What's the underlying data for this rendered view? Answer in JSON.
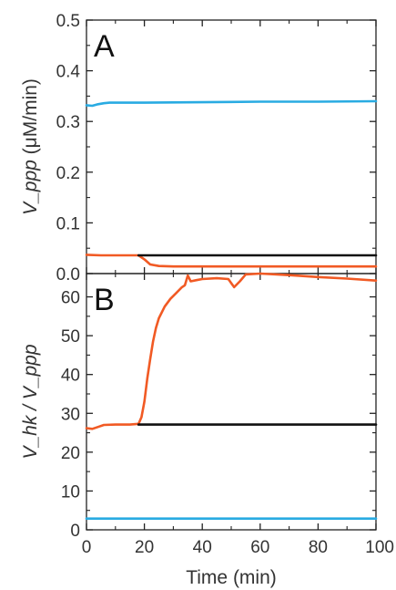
{
  "chart_data": [
    {
      "type": "line",
      "panel_label": "A",
      "title": "",
      "xlabel": "",
      "ylabel": "V_ppp (μM/min)",
      "ylabel_parts": {
        "name": "V_ppp",
        "unit": " (μM/min)"
      },
      "xlim": [
        0,
        100
      ],
      "ylim": [
        0,
        0.5
      ],
      "xticks": [
        0,
        20,
        40,
        60,
        80,
        100
      ],
      "yticks": [
        0.0,
        0.1,
        0.2,
        0.3,
        0.4,
        0.5
      ],
      "ytick_labels": [
        "0.0",
        "0.1",
        "0.2",
        "0.3",
        "0.4",
        "0.5"
      ],
      "grid": false,
      "legend": "none",
      "series": [
        {
          "color": "#29abe2",
          "points": [
            [
              0,
              0.332
            ],
            [
              2,
              0.331
            ],
            [
              4,
              0.334
            ],
            [
              6,
              0.336
            ],
            [
              8,
              0.337
            ],
            [
              20,
              0.337
            ],
            [
              40,
              0.338
            ],
            [
              60,
              0.339
            ],
            [
              80,
              0.339
            ],
            [
              100,
              0.34
            ]
          ]
        },
        {
          "color": "#f15a24",
          "points": [
            [
              0,
              0.037
            ],
            [
              5,
              0.036
            ],
            [
              10,
              0.036
            ],
            [
              18,
              0.036
            ],
            [
              20,
              0.028
            ],
            [
              22,
              0.018
            ],
            [
              25,
              0.015
            ],
            [
              30,
              0.014
            ],
            [
              50,
              0.014
            ],
            [
              70,
              0.014
            ],
            [
              100,
              0.014
            ]
          ]
        },
        {
          "color": "#111111",
          "points": [
            [
              18,
              0.036
            ],
            [
              100,
              0.036
            ]
          ]
        }
      ]
    },
    {
      "type": "line",
      "panel_label": "B",
      "title": "",
      "xlabel": "Time (min)",
      "ylabel": "V_hk / V_ppp",
      "xlim": [
        0,
        100
      ],
      "ylim": [
        0,
        66
      ],
      "xticks": [
        0,
        20,
        40,
        60,
        80,
        100
      ],
      "xtick_labels": [
        "0",
        "20",
        "40",
        "60",
        "80",
        "100"
      ],
      "yticks": [
        0,
        10,
        20,
        30,
        40,
        50,
        60
      ],
      "ytick_labels": [
        "0",
        "10",
        "20",
        "30",
        "40",
        "50",
        "60"
      ],
      "grid": false,
      "legend": "none",
      "series": [
        {
          "color": "#f15a24",
          "points": [
            [
              0,
              26.2
            ],
            [
              2,
              26
            ],
            [
              4,
              26.5
            ],
            [
              6,
              27
            ],
            [
              10,
              27.1
            ],
            [
              15,
              27.1
            ],
            [
              18,
              27.3
            ],
            [
              19,
              29
            ],
            [
              20,
              33
            ],
            [
              21,
              39
            ],
            [
              22,
              44
            ],
            [
              23,
              48.5
            ],
            [
              24,
              52
            ],
            [
              25,
              54.5
            ],
            [
              27,
              57.5
            ],
            [
              29,
              59.5
            ],
            [
              31,
              61
            ],
            [
              33,
              62.5
            ],
            [
              34,
              63
            ],
            [
              35,
              65.5
            ],
            [
              36,
              64
            ],
            [
              38,
              64.3
            ],
            [
              40,
              64.6
            ],
            [
              45,
              64.8
            ],
            [
              49,
              64.6
            ],
            [
              51,
              62.5
            ],
            [
              53,
              64
            ],
            [
              55,
              65.8
            ],
            [
              60,
              66
            ],
            [
              70,
              65.6
            ],
            [
              80,
              65.1
            ],
            [
              90,
              64.7
            ],
            [
              100,
              64.2
            ]
          ]
        },
        {
          "color": "#111111",
          "points": [
            [
              18,
              27.1
            ],
            [
              100,
              27.1
            ]
          ]
        },
        {
          "color": "#29abe2",
          "points": [
            [
              0,
              2.9
            ],
            [
              50,
              2.9
            ],
            [
              100,
              2.9
            ]
          ]
        }
      ]
    }
  ]
}
